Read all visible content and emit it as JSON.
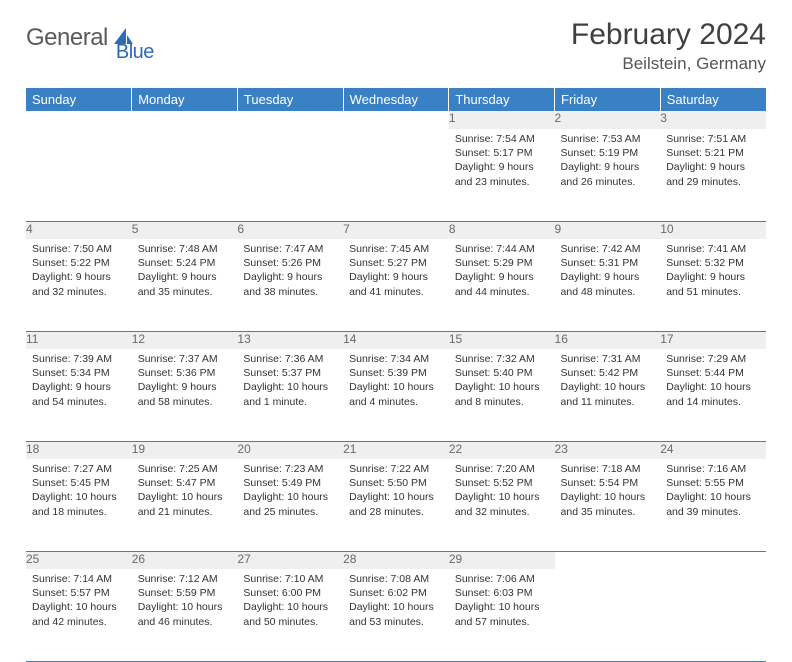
{
  "logo": {
    "text1": "General",
    "text2": "Blue"
  },
  "title": "February 2024",
  "location": "Beilstein, Germany",
  "colors": {
    "header_bg": "#3a80c4",
    "header_text": "#ffffff",
    "daynum_bg": "#efefef",
    "daynum_text": "#6a6a6a",
    "cell_text": "#333333",
    "rule": "#3a80c4",
    "logo_gray": "#5a5a5a",
    "logo_blue": "#2d6bb4"
  },
  "weekdays": [
    "Sunday",
    "Monday",
    "Tuesday",
    "Wednesday",
    "Thursday",
    "Friday",
    "Saturday"
  ],
  "weeks": [
    {
      "nums": [
        "",
        "",
        "",
        "",
        "1",
        "2",
        "3"
      ],
      "cells": [
        null,
        null,
        null,
        null,
        {
          "sunrise": "7:54 AM",
          "sunset": "5:17 PM",
          "daylight": "9 hours and 23 minutes."
        },
        {
          "sunrise": "7:53 AM",
          "sunset": "5:19 PM",
          "daylight": "9 hours and 26 minutes."
        },
        {
          "sunrise": "7:51 AM",
          "sunset": "5:21 PM",
          "daylight": "9 hours and 29 minutes."
        }
      ]
    },
    {
      "nums": [
        "4",
        "5",
        "6",
        "7",
        "8",
        "9",
        "10"
      ],
      "cells": [
        {
          "sunrise": "7:50 AM",
          "sunset": "5:22 PM",
          "daylight": "9 hours and 32 minutes."
        },
        {
          "sunrise": "7:48 AM",
          "sunset": "5:24 PM",
          "daylight": "9 hours and 35 minutes."
        },
        {
          "sunrise": "7:47 AM",
          "sunset": "5:26 PM",
          "daylight": "9 hours and 38 minutes."
        },
        {
          "sunrise": "7:45 AM",
          "sunset": "5:27 PM",
          "daylight": "9 hours and 41 minutes."
        },
        {
          "sunrise": "7:44 AM",
          "sunset": "5:29 PM",
          "daylight": "9 hours and 44 minutes."
        },
        {
          "sunrise": "7:42 AM",
          "sunset": "5:31 PM",
          "daylight": "9 hours and 48 minutes."
        },
        {
          "sunrise": "7:41 AM",
          "sunset": "5:32 PM",
          "daylight": "9 hours and 51 minutes."
        }
      ]
    },
    {
      "nums": [
        "11",
        "12",
        "13",
        "14",
        "15",
        "16",
        "17"
      ],
      "cells": [
        {
          "sunrise": "7:39 AM",
          "sunset": "5:34 PM",
          "daylight": "9 hours and 54 minutes."
        },
        {
          "sunrise": "7:37 AM",
          "sunset": "5:36 PM",
          "daylight": "9 hours and 58 minutes."
        },
        {
          "sunrise": "7:36 AM",
          "sunset": "5:37 PM",
          "daylight": "10 hours and 1 minute."
        },
        {
          "sunrise": "7:34 AM",
          "sunset": "5:39 PM",
          "daylight": "10 hours and 4 minutes."
        },
        {
          "sunrise": "7:32 AM",
          "sunset": "5:40 PM",
          "daylight": "10 hours and 8 minutes."
        },
        {
          "sunrise": "7:31 AM",
          "sunset": "5:42 PM",
          "daylight": "10 hours and 11 minutes."
        },
        {
          "sunrise": "7:29 AM",
          "sunset": "5:44 PM",
          "daylight": "10 hours and 14 minutes."
        }
      ]
    },
    {
      "nums": [
        "18",
        "19",
        "20",
        "21",
        "22",
        "23",
        "24"
      ],
      "cells": [
        {
          "sunrise": "7:27 AM",
          "sunset": "5:45 PM",
          "daylight": "10 hours and 18 minutes."
        },
        {
          "sunrise": "7:25 AM",
          "sunset": "5:47 PM",
          "daylight": "10 hours and 21 minutes."
        },
        {
          "sunrise": "7:23 AM",
          "sunset": "5:49 PM",
          "daylight": "10 hours and 25 minutes."
        },
        {
          "sunrise": "7:22 AM",
          "sunset": "5:50 PM",
          "daylight": "10 hours and 28 minutes."
        },
        {
          "sunrise": "7:20 AM",
          "sunset": "5:52 PM",
          "daylight": "10 hours and 32 minutes."
        },
        {
          "sunrise": "7:18 AM",
          "sunset": "5:54 PM",
          "daylight": "10 hours and 35 minutes."
        },
        {
          "sunrise": "7:16 AM",
          "sunset": "5:55 PM",
          "daylight": "10 hours and 39 minutes."
        }
      ]
    },
    {
      "nums": [
        "25",
        "26",
        "27",
        "28",
        "29",
        "",
        ""
      ],
      "cells": [
        {
          "sunrise": "7:14 AM",
          "sunset": "5:57 PM",
          "daylight": "10 hours and 42 minutes."
        },
        {
          "sunrise": "7:12 AM",
          "sunset": "5:59 PM",
          "daylight": "10 hours and 46 minutes."
        },
        {
          "sunrise": "7:10 AM",
          "sunset": "6:00 PM",
          "daylight": "10 hours and 50 minutes."
        },
        {
          "sunrise": "7:08 AM",
          "sunset": "6:02 PM",
          "daylight": "10 hours and 53 minutes."
        },
        {
          "sunrise": "7:06 AM",
          "sunset": "6:03 PM",
          "daylight": "10 hours and 57 minutes."
        },
        null,
        null
      ]
    }
  ],
  "labels": {
    "sunrise": "Sunrise:",
    "sunset": "Sunset:",
    "daylight": "Daylight:"
  }
}
